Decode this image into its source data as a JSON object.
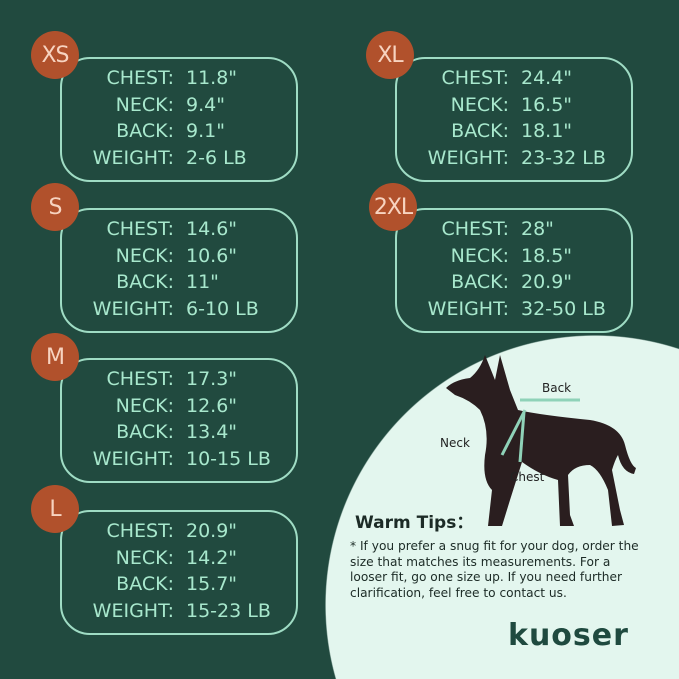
{
  "sizes": [
    {
      "size": "XS",
      "chest": "11.8\"",
      "neck": "9.4\"",
      "back": "9.1\"",
      "weight": "2-6 LB"
    },
    {
      "size": "S",
      "chest": "14.6\"",
      "neck": "10.6\"",
      "back": "11\"",
      "weight": "6-10 LB"
    },
    {
      "size": "M",
      "chest": "17.3\"",
      "neck": "12.6\"",
      "back": "13.4\"",
      "weight": "10-15 LB"
    },
    {
      "size": "L",
      "chest": "20.9\"",
      "neck": "14.2\"",
      "back": "15.7\"",
      "weight": "15-23 LB"
    },
    {
      "size": "XL",
      "chest": "24.4\"",
      "neck": "16.5\"",
      "back": "18.1\"",
      "weight": "23-32 LB"
    },
    {
      "size": "2XL",
      "chest": "28\"",
      "neck": "18.5\"",
      "back": "20.9\"",
      "weight": "32-50 LB"
    }
  ],
  "labels": {
    "chest": "CHEST:",
    "neck": "NECK:",
    "back": "BACK:",
    "weight": "WEIGHT:"
  },
  "diagram": {
    "back": "Back",
    "neck": "Neck",
    "chest": "Chest"
  },
  "tips": {
    "title": "Warm Tips：",
    "text": "* If you prefer a snug fit for your dog, order the size that matches its measurements. For a looser fit, go one size up. If you need further clarification, feel free to contact us."
  },
  "brand": "kuoser",
  "colors": {
    "background": "#214a3f",
    "badge": "#b1512c",
    "text": "#a8e8cd",
    "circle": "#e3f6ee"
  }
}
